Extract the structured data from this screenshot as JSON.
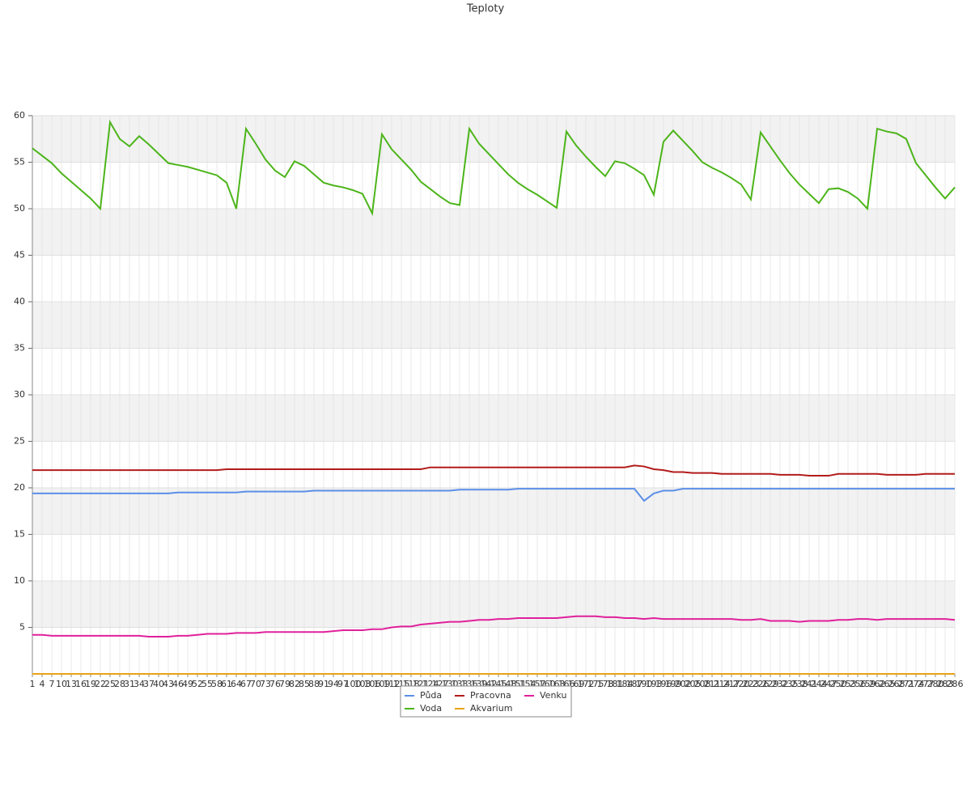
{
  "chart_data": {
    "type": "line",
    "title": "Teploty",
    "categories": [
      "1",
      "4",
      "7",
      "10",
      "13",
      "16",
      "19",
      "22",
      "25",
      "28",
      "31",
      "34",
      "37",
      "40",
      "43",
      "46",
      "49",
      "52",
      "55",
      "58",
      "61",
      "64",
      "67",
      "70",
      "73",
      "76",
      "79",
      "82",
      "85",
      "88",
      "91",
      "94",
      "97",
      "100",
      "103",
      "106",
      "109",
      "112",
      "115",
      "118",
      "121",
      "124",
      "127",
      "130",
      "133",
      "136",
      "139",
      "142",
      "145",
      "148",
      "151",
      "154",
      "157",
      "160",
      "163",
      "166",
      "169",
      "172",
      "175",
      "178",
      "181",
      "184",
      "187",
      "190",
      "193",
      "196",
      "199",
      "202",
      "205",
      "208",
      "211",
      "214",
      "217",
      "220",
      "223",
      "226",
      "229",
      "232",
      "235",
      "238",
      "241",
      "244",
      "247",
      "250",
      "253",
      "256",
      "259",
      "262",
      "265",
      "268",
      "271",
      "274",
      "277",
      "280",
      "283",
      "286"
    ],
    "series": [
      {
        "name": "Půda",
        "color": "#5b8fe8",
        "values": [
          19.4,
          19.4,
          19.4,
          19.4,
          19.4,
          19.4,
          19.4,
          19.4,
          19.4,
          19.4,
          19.4,
          19.4,
          19.4,
          19.4,
          19.4,
          19.5,
          19.5,
          19.5,
          19.5,
          19.5,
          19.5,
          19.5,
          19.6,
          19.6,
          19.6,
          19.6,
          19.6,
          19.6,
          19.6,
          19.7,
          19.7,
          19.7,
          19.7,
          19.7,
          19.7,
          19.7,
          19.7,
          19.7,
          19.7,
          19.7,
          19.7,
          19.7,
          19.7,
          19.7,
          19.8,
          19.8,
          19.8,
          19.8,
          19.8,
          19.8,
          19.9,
          19.9,
          19.9,
          19.9,
          19.9,
          19.9,
          19.9,
          19.9,
          19.9,
          19.9,
          19.9,
          19.9,
          19.9,
          18.6,
          19.4,
          19.7,
          19.7,
          19.9,
          19.9,
          19.9,
          19.9,
          19.9,
          19.9,
          19.9,
          19.9,
          19.9,
          19.9,
          19.9,
          19.9,
          19.9,
          19.9,
          19.9,
          19.9,
          19.9,
          19.9,
          19.9,
          19.9,
          19.9,
          19.9,
          19.9,
          19.9,
          19.9,
          19.9,
          19.9,
          19.9,
          19.9
        ]
      },
      {
        "name": "Voda",
        "color": "#4cb51a",
        "values": [
          56.5,
          55.7,
          54.9,
          53.8,
          52.9,
          52,
          51.1,
          50,
          59.3,
          57.5,
          56.7,
          57.8,
          56.9,
          55.9,
          54.9,
          54.7,
          54.5,
          54.2,
          53.9,
          53.6,
          52.8,
          50,
          58.6,
          57,
          55.3,
          54.1,
          53.4,
          55.1,
          54.6,
          53.7,
          52.8,
          52.5,
          52.3,
          52,
          51.6,
          49.5,
          58,
          56.4,
          55.3,
          54.2,
          52.9,
          52.1,
          51.3,
          50.6,
          50.4,
          58.6,
          57,
          55.9,
          54.8,
          53.7,
          52.8,
          52.1,
          51.5,
          50.8,
          50.1,
          58.3,
          56.8,
          55.6,
          54.5,
          53.5,
          55.1,
          54.9,
          54.3,
          53.6,
          51.5,
          57.2,
          58.4,
          57.3,
          56.2,
          55,
          54.4,
          53.9,
          53.3,
          52.6,
          51,
          58.2,
          56.7,
          55.2,
          53.8,
          52.6,
          51.6,
          50.6,
          52.1,
          52.2,
          51.8,
          51.1,
          50,
          58.6,
          58.3,
          58.1,
          57.5,
          54.9,
          53.6,
          52.3,
          51.1,
          52.3
        ]
      },
      {
        "name": "Pracovna",
        "color": "#b31b1b",
        "values": [
          21.9,
          21.9,
          21.9,
          21.9,
          21.9,
          21.9,
          21.9,
          21.9,
          21.9,
          21.9,
          21.9,
          21.9,
          21.9,
          21.9,
          21.9,
          21.9,
          21.9,
          21.9,
          21.9,
          21.9,
          22.0,
          22.0,
          22.0,
          22.0,
          22.0,
          22.0,
          22.0,
          22.0,
          22.0,
          22.0,
          22.0,
          22.0,
          22.0,
          22.0,
          22.0,
          22.0,
          22.0,
          22.0,
          22.0,
          22.0,
          22.0,
          22.2,
          22.2,
          22.2,
          22.2,
          22.2,
          22.2,
          22.2,
          22.2,
          22.2,
          22.2,
          22.2,
          22.2,
          22.2,
          22.2,
          22.2,
          22.2,
          22.2,
          22.2,
          22.2,
          22.2,
          22.2,
          22.4,
          22.3,
          22.0,
          21.9,
          21.7,
          21.7,
          21.6,
          21.6,
          21.6,
          21.5,
          21.5,
          21.5,
          21.5,
          21.5,
          21.5,
          21.4,
          21.4,
          21.4,
          21.3,
          21.3,
          21.3,
          21.5,
          21.5,
          21.5,
          21.5,
          21.5,
          21.4,
          21.4,
          21.4,
          21.4,
          21.5,
          21.5,
          21.5,
          21.5
        ]
      },
      {
        "name": "Akvarium",
        "color": "#e8a317",
        "values": [
          0,
          0,
          0,
          0,
          0,
          0,
          0,
          0,
          0,
          0,
          0,
          0,
          0,
          0,
          0,
          0,
          0,
          0,
          0,
          0,
          0,
          0,
          0,
          0,
          0,
          0,
          0,
          0,
          0,
          0,
          0,
          0,
          0,
          0,
          0,
          0,
          0,
          0,
          0,
          0,
          0,
          0,
          0,
          0,
          0,
          0,
          0,
          0,
          0,
          0,
          0,
          0,
          0,
          0,
          0,
          0,
          0,
          0,
          0,
          0,
          0,
          0,
          0,
          0,
          0,
          0,
          0,
          0,
          0,
          0,
          0,
          0,
          0,
          0,
          0,
          0,
          0,
          0,
          0,
          0,
          0,
          0,
          0,
          0,
          0,
          0,
          0,
          0,
          0,
          0,
          0,
          0,
          0,
          0,
          0,
          0
        ]
      },
      {
        "name": "Venku",
        "color": "#e0209b",
        "values": [
          4.2,
          4.2,
          4.1,
          4.1,
          4.1,
          4.1,
          4.1,
          4.1,
          4.1,
          4.1,
          4.1,
          4.1,
          4.0,
          4.0,
          4.0,
          4.1,
          4.1,
          4.2,
          4.3,
          4.3,
          4.3,
          4.4,
          4.4,
          4.4,
          4.5,
          4.5,
          4.5,
          4.5,
          4.5,
          4.5,
          4.5,
          4.6,
          4.7,
          4.7,
          4.7,
          4.8,
          4.8,
          5.0,
          5.1,
          5.1,
          5.3,
          5.4,
          5.5,
          5.6,
          5.6,
          5.7,
          5.8,
          5.8,
          5.9,
          5.9,
          6.0,
          6.0,
          6.0,
          6.0,
          6.0,
          6.1,
          6.2,
          6.2,
          6.2,
          6.1,
          6.1,
          6.0,
          6.0,
          5.9,
          6.0,
          5.9,
          5.9,
          5.9,
          5.9,
          5.9,
          5.9,
          5.9,
          5.9,
          5.8,
          5.8,
          5.9,
          5.7,
          5.7,
          5.7,
          5.6,
          5.7,
          5.7,
          5.7,
          5.8,
          5.8,
          5.9,
          5.9,
          5.8,
          5.9,
          5.9,
          5.9,
          5.9,
          5.9,
          5.9,
          5.9,
          5.8
        ]
      }
    ],
    "ylim": [
      0,
      60
    ],
    "yticks": [
      5,
      10,
      15,
      20,
      25,
      30,
      35,
      40,
      45,
      50,
      55,
      60
    ],
    "grid": true,
    "legend": "bottom"
  }
}
